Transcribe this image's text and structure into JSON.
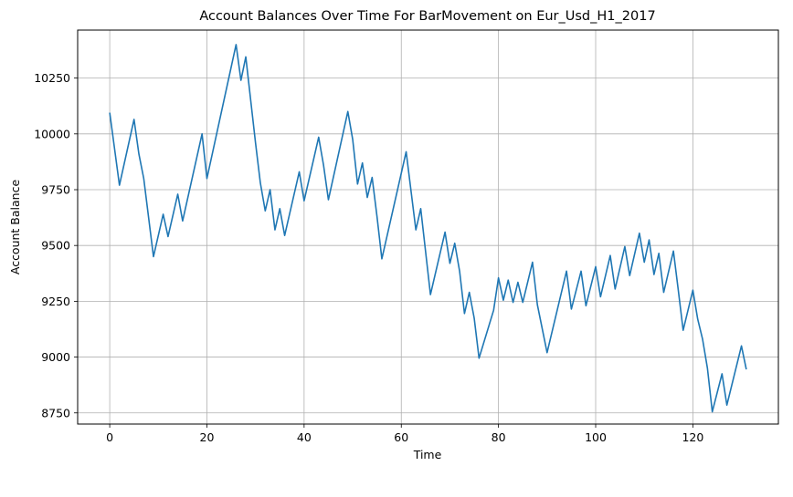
{
  "chart_data": {
    "type": "line",
    "title": "Account Balances Over Time For BarMovement on Eur_Usd_H1_2017",
    "xlabel": "Time",
    "ylabel": "Account Balance",
    "xlim": [
      -6.6,
      137.6
    ],
    "ylim": [
      8700,
      10465
    ],
    "x_ticks": [
      0,
      20,
      40,
      60,
      80,
      100,
      120
    ],
    "y_ticks": [
      8750,
      9000,
      9250,
      9500,
      9750,
      10000,
      10250
    ],
    "grid": true,
    "legend": "none",
    "line_color": "#1f77b4",
    "series": [
      {
        "x": [
          0,
          2,
          5,
          6,
          7,
          9,
          11,
          12,
          14,
          15,
          19,
          20,
          26,
          27,
          28,
          30,
          31,
          32,
          33,
          34,
          35,
          36,
          39,
          40,
          43,
          44,
          45,
          49,
          50,
          51,
          52,
          53,
          54,
          55,
          56,
          61,
          63,
          64,
          66,
          69,
          70,
          71,
          72,
          73,
          74,
          75,
          76,
          79,
          80,
          81,
          82,
          83,
          84,
          85,
          87,
          88,
          90,
          94,
          95,
          97,
          98,
          100,
          101,
          103,
          104,
          106,
          107,
          109,
          110,
          111,
          112,
          113,
          114,
          116,
          117,
          118,
          120,
          121,
          122,
          123,
          124,
          126,
          127,
          130,
          131
        ],
        "y": [
          10095,
          9770,
          10065,
          9910,
          9800,
          9450,
          9640,
          9540,
          9730,
          9610,
          10000,
          9800,
          10400,
          10240,
          10345,
          9960,
          9780,
          9655,
          9750,
          9570,
          9665,
          9545,
          9830,
          9700,
          9985,
          9860,
          9705,
          10100,
          9975,
          9775,
          9870,
          9715,
          9805,
          9630,
          9440,
          9920,
          9570,
          9665,
          9280,
          9560,
          9420,
          9510,
          9385,
          9195,
          9290,
          9175,
          8995,
          9210,
          9355,
          9255,
          9345,
          9245,
          9335,
          9245,
          9425,
          9235,
          9020,
          9385,
          9215,
          9385,
          9230,
          9405,
          9270,
          9455,
          9305,
          9495,
          9365,
          9555,
          9425,
          9525,
          9370,
          9465,
          9290,
          9475,
          9300,
          9120,
          9300,
          9170,
          9080,
          8950,
          8755,
          8925,
          8785,
          9050,
          8945
        ]
      }
    ]
  }
}
